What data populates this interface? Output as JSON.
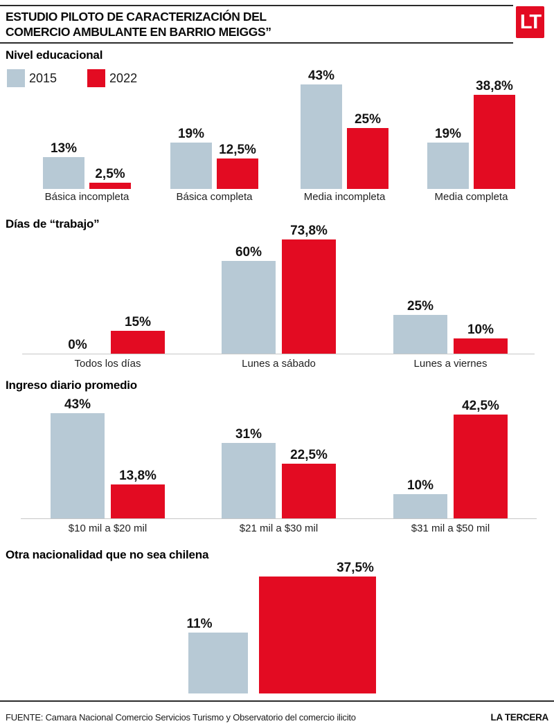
{
  "header": {
    "title_line1": "ESTUDIO PILOTO DE CARACTERIZACIÓN DEL",
    "title_line2": "COMERCIO AMBULANTE EN BARRIO MEIGGS”",
    "logo": "LT"
  },
  "legend": {
    "items": [
      {
        "label": "2015",
        "color": "#b7c9d5"
      },
      {
        "label": "2022",
        "color": "#e30b22"
      }
    ]
  },
  "chart_data": [
    {
      "type": "bar",
      "title": "Nivel educacional",
      "categories": [
        "Básica incompleta",
        "Básica completa",
        "Media incompleta",
        "Media completa"
      ],
      "series": [
        {
          "name": "2015",
          "color": "#b7c9d5",
          "values": [
            13,
            19,
            43,
            19
          ],
          "labels": [
            "13%",
            "19%",
            "43%",
            "19%"
          ]
        },
        {
          "name": "2022",
          "color": "#e30b22",
          "values": [
            2.5,
            12.5,
            25,
            38.8
          ],
          "labels": [
            "2,5%",
            "12,5%",
            "25%",
            "38,8%"
          ]
        }
      ],
      "ylim": [
        0,
        45
      ],
      "grid": false,
      "baseline": false,
      "legend_position": "top-left"
    },
    {
      "type": "bar",
      "title": "Días de “trabajo”",
      "categories": [
        "Todos los días",
        "Lunes a sábado",
        "Lunes a viernes"
      ],
      "series": [
        {
          "name": "2015",
          "color": "#b7c9d5",
          "values": [
            0,
            60,
            25
          ],
          "labels": [
            "0%",
            "60%",
            "25%"
          ]
        },
        {
          "name": "2022",
          "color": "#e30b22",
          "values": [
            15,
            73.8,
            10
          ],
          "labels": [
            "15%",
            "73,8%",
            "10%"
          ]
        }
      ],
      "ylim": [
        0,
        80
      ],
      "grid": false,
      "baseline": true
    },
    {
      "type": "bar",
      "title": "Ingreso diario promedio",
      "categories": [
        "$10 mil a $20 mil",
        "$21 mil a $30 mil",
        "$31 mil a $50 mil"
      ],
      "series": [
        {
          "name": "2015",
          "color": "#b7c9d5",
          "values": [
            43,
            31,
            10
          ],
          "labels": [
            "43%",
            "31%",
            "10%"
          ]
        },
        {
          "name": "2022",
          "color": "#e30b22",
          "values": [
            13.8,
            22.5,
            42.5
          ],
          "labels": [
            "13,8%",
            "22,5%",
            "42,5%"
          ]
        }
      ],
      "ylim": [
        0,
        45
      ],
      "grid": false,
      "baseline": true
    },
    {
      "type": "bar",
      "title": "Otra nacionalidad que no sea chilena",
      "categories": [
        ""
      ],
      "series": [
        {
          "name": "2015",
          "color": "#b7c9d5",
          "values": [
            11
          ],
          "labels": [
            "11%"
          ]
        },
        {
          "name": "2022",
          "color": "#e30b22",
          "values": [
            37.5
          ],
          "labels": [
            "37,5%"
          ]
        }
      ],
      "ylim": [
        0,
        40
      ],
      "grid": false,
      "baseline": false
    }
  ],
  "footer": {
    "source": "FUENTE: Camara Nacional Comercio Servicios Turismo y Observatorio del comercio ilicito",
    "brand": "LA TERCERA"
  },
  "colors": {
    "series_2015": "#b7c9d5",
    "series_2022": "#e30b22",
    "logo_red": "#e30b22"
  }
}
